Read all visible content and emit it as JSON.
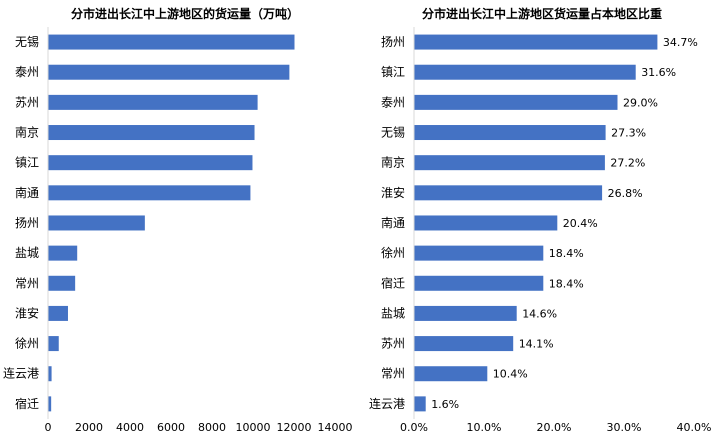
{
  "colors": {
    "bar": "#4472C4",
    "text": "#000000",
    "axis": "#d9d9d9",
    "background": "#ffffff"
  },
  "chart_data": [
    {
      "type": "bar",
      "orientation": "horizontal",
      "title": "分市进出长江中上游地区的货运量（万吨）",
      "categories": [
        "无锡",
        "泰州",
        "苏州",
        "南京",
        "镇江",
        "南通",
        "扬州",
        "盐城",
        "常州",
        "淮安",
        "徐州",
        "连云港",
        "宿迁"
      ],
      "values": [
        12000,
        11750,
        10200,
        10050,
        9950,
        9850,
        4700,
        1400,
        1300,
        950,
        500,
        150,
        130
      ],
      "xlim": [
        0,
        14000
      ],
      "xticks": [
        0,
        2000,
        4000,
        6000,
        8000,
        10000,
        12000,
        14000
      ],
      "xtick_labels": [
        "0",
        "2000",
        "4000",
        "6000",
        "8000",
        "10000",
        "12000",
        "14000"
      ],
      "grid": false,
      "legend": "none"
    },
    {
      "type": "bar",
      "orientation": "horizontal",
      "title": "分市进出长江中上游地区货运量占本地区比重",
      "categories": [
        "扬州",
        "镇江",
        "泰州",
        "无锡",
        "南京",
        "淮安",
        "南通",
        "徐州",
        "宿迁",
        "盐城",
        "苏州",
        "常州",
        "连云港"
      ],
      "values": [
        34.7,
        31.6,
        29.0,
        27.3,
        27.2,
        26.8,
        20.4,
        18.4,
        18.4,
        14.6,
        14.1,
        10.4,
        1.6
      ],
      "data_labels": [
        "34.7%",
        "31.6%",
        "29.0%",
        "27.3%",
        "27.2%",
        "26.8%",
        "20.4%",
        "18.4%",
        "18.4%",
        "14.6%",
        "14.1%",
        "10.4%",
        "1.6%"
      ],
      "xlim": [
        0,
        40
      ],
      "xticks": [
        0,
        10,
        20,
        30,
        40
      ],
      "xtick_labels": [
        "0.0%",
        "10.0%",
        "20.0%",
        "30.0%",
        "40.0%"
      ],
      "grid": false,
      "legend": "none"
    }
  ]
}
